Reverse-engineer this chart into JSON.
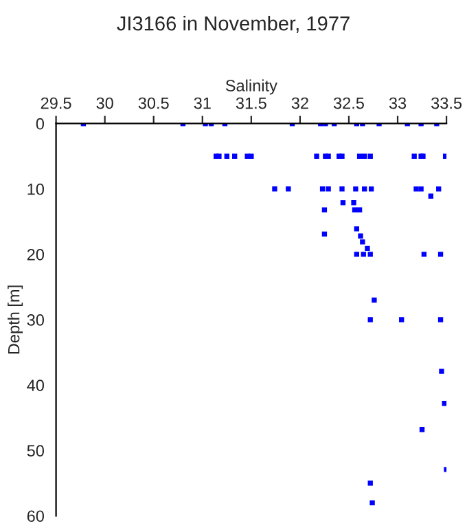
{
  "chart_data": {
    "type": "scatter",
    "title": "JI3166 in November, 1977",
    "xlabel": "Salinity",
    "ylabel": "Depth [m]",
    "xlim": [
      29.5,
      33.5
    ],
    "xticks": [
      29.5,
      30,
      30.5,
      31,
      31.5,
      32,
      32.5,
      33,
      33.5
    ],
    "ylim": [
      60,
      0
    ],
    "yticks": [
      0,
      10,
      20,
      30,
      40,
      50,
      60
    ],
    "marker": "square",
    "grid": false,
    "series": [
      {
        "color": "#0000ff",
        "x": [
          29.78,
          30.8,
          31.03,
          31.09,
          31.23,
          31.92,
          32.21,
          32.26,
          32.35,
          32.58,
          32.64,
          32.81,
          33.1,
          33.24,
          33.4,
          31.14,
          31.17,
          31.25,
          31.33,
          31.46,
          31.5,
          32.17,
          32.26,
          32.29,
          32.4,
          32.43,
          32.61,
          32.66,
          32.72,
          33.17,
          33.24,
          33.26,
          33.49,
          31.74,
          31.88,
          32.23,
          32.29,
          32.43,
          32.57,
          32.66,
          32.73,
          33.19,
          33.24,
          33.42,
          33.34,
          32.44,
          32.55,
          32.25,
          32.56,
          32.61,
          32.25,
          32.58,
          32.62,
          32.64,
          32.69,
          32.58,
          32.65,
          32.72,
          33.27,
          33.44,
          32.76,
          32.72,
          33.04,
          33.44,
          33.45,
          33.48,
          33.25,
          33.5,
          32.72,
          32.74
        ],
        "values": [
          0,
          0,
          0,
          0,
          0,
          0,
          0,
          0,
          0,
          0,
          0,
          0,
          0,
          0,
          0,
          5,
          5,
          5,
          5,
          5,
          5,
          5,
          5,
          5,
          5,
          5,
          5,
          5,
          5,
          5,
          5,
          5,
          5,
          10,
          10,
          10,
          10,
          10,
          10,
          10,
          10,
          10,
          10,
          10,
          11.1,
          12.1,
          12.1,
          13.2,
          13.2,
          13.2,
          16.9,
          16.1,
          17.2,
          18.1,
          19.1,
          20,
          20,
          20,
          20,
          20,
          27,
          30,
          30,
          30,
          37.9,
          42.8,
          46.8,
          52.9,
          55,
          58
        ]
      }
    ]
  }
}
